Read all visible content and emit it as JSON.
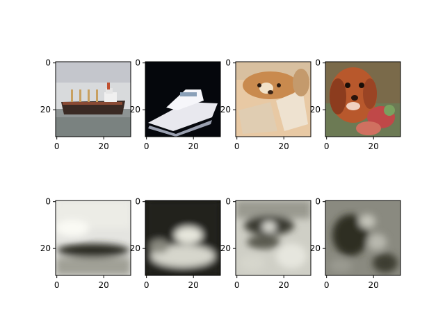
{
  "chart_data": [
    {
      "type": "image",
      "row": 0,
      "col": 0,
      "subject": "ship",
      "palette": "color",
      "xlim": [
        -0.5,
        31.5
      ],
      "ylim": [
        31.5,
        -0.5
      ],
      "xticks": [
        0,
        20
      ],
      "yticks": [
        0,
        20
      ],
      "xtick_labels": [
        "0",
        "20"
      ],
      "ytick_labels": [
        "0",
        "20"
      ]
    },
    {
      "type": "image",
      "row": 0,
      "col": 1,
      "subject": "boat",
      "palette": "color",
      "xlim": [
        -0.5,
        31.5
      ],
      "ylim": [
        31.5,
        -0.5
      ],
      "xticks": [
        0,
        20
      ],
      "yticks": [
        0,
        20
      ],
      "xtick_labels": [
        "0",
        "20"
      ],
      "ytick_labels": [
        "0",
        "20"
      ]
    },
    {
      "type": "image",
      "row": 0,
      "col": 2,
      "subject": "dog",
      "palette": "color",
      "xlim": [
        -0.5,
        31.5
      ],
      "ylim": [
        31.5,
        -0.5
      ],
      "xticks": [
        0,
        20
      ],
      "yticks": [
        0,
        20
      ],
      "xtick_labels": [
        "0",
        "20"
      ],
      "ytick_labels": [
        "0",
        "20"
      ]
    },
    {
      "type": "image",
      "row": 0,
      "col": 3,
      "subject": "dog",
      "palette": "color",
      "xlim": [
        -0.5,
        31.5
      ],
      "ylim": [
        31.5,
        -0.5
      ],
      "xticks": [
        0,
        20
      ],
      "yticks": [
        0,
        20
      ],
      "xtick_labels": [
        "0",
        "20"
      ],
      "ytick_labels": [
        "0",
        "20"
      ]
    },
    {
      "type": "image",
      "row": 1,
      "col": 0,
      "subject": "ship reconstruction",
      "palette": "grayscale",
      "xlim": [
        -0.5,
        31.5
      ],
      "ylim": [
        31.5,
        -0.5
      ],
      "xticks": [
        0,
        20
      ],
      "yticks": [
        0,
        20
      ],
      "xtick_labels": [
        "0",
        "20"
      ],
      "ytick_labels": [
        "0",
        "20"
      ]
    },
    {
      "type": "image",
      "row": 1,
      "col": 1,
      "subject": "boat reconstruction",
      "palette": "grayscale",
      "xlim": [
        -0.5,
        31.5
      ],
      "ylim": [
        31.5,
        -0.5
      ],
      "xticks": [
        0,
        20
      ],
      "yticks": [
        0,
        20
      ],
      "xtick_labels": [
        "0",
        "20"
      ],
      "ytick_labels": [
        "0",
        "20"
      ]
    },
    {
      "type": "image",
      "row": 1,
      "col": 2,
      "subject": "dog reconstruction",
      "palette": "grayscale",
      "xlim": [
        -0.5,
        31.5
      ],
      "ylim": [
        31.5,
        -0.5
      ],
      "xticks": [
        0,
        20
      ],
      "yticks": [
        0,
        20
      ],
      "xtick_labels": [
        "0",
        "20"
      ],
      "ytick_labels": [
        "0",
        "20"
      ]
    },
    {
      "type": "image",
      "row": 1,
      "col": 3,
      "subject": "dog reconstruction",
      "palette": "grayscale",
      "xlim": [
        -0.5,
        31.5
      ],
      "ylim": [
        31.5,
        -0.5
      ],
      "xticks": [
        0,
        20
      ],
      "yticks": [
        0,
        20
      ],
      "xtick_labels": [
        "0",
        "20"
      ],
      "ytick_labels": [
        "0",
        "20"
      ]
    }
  ],
  "colors": {
    "background": "#ffffff",
    "axis": "#000000",
    "sky_light": "#d8dadc",
    "sea": "#8e9494",
    "hull_dark": "#3a2a24",
    "night": "#05070c",
    "boat_white": "#e8e8ee",
    "fur_orange": "#c98a4e",
    "fur_light": "#e8c9a4",
    "dog_red": "#b8582c",
    "gray_light": "#e4e4e0",
    "gray_dark": "#202018"
  }
}
